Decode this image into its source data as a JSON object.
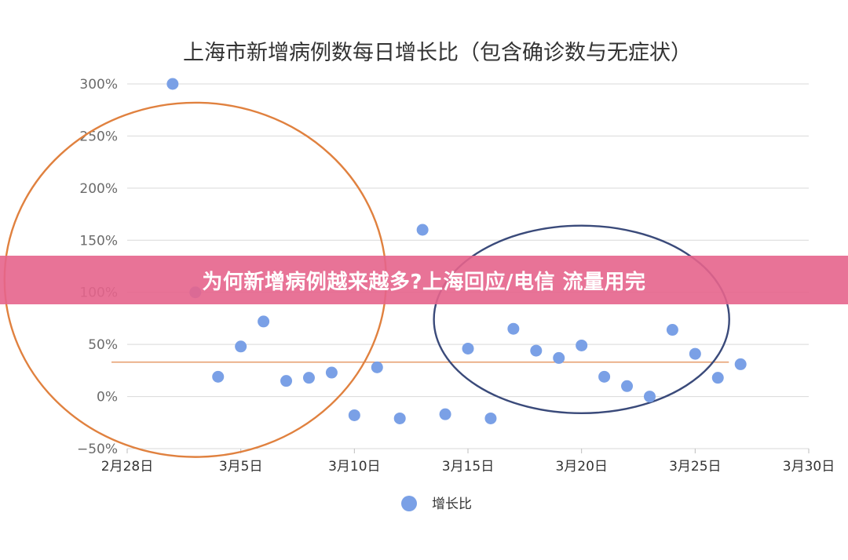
{
  "chart_data": {
    "type": "scatter",
    "title": "上海市新增病例数每日增长比（包含确诊数与无症状）",
    "xlabel": "",
    "ylabel": "",
    "x_ticks": [
      "2月28日",
      "3月5日",
      "3月10日",
      "3月15日",
      "3月20日",
      "3月25日",
      "3月30日"
    ],
    "y_ticks": [
      "300%",
      "250%",
      "200%",
      "150%",
      "100%",
      "50%",
      "0%",
      "−50%"
    ],
    "xlim": [
      "2022-02-28",
      "2022-03-30"
    ],
    "ylim": [
      -50,
      300
    ],
    "grid": "horizontal",
    "legend_position": "bottom",
    "series": [
      {
        "name": "增长比",
        "color": "#7aa0e6",
        "points": [
          {
            "x": "2022-03-02",
            "y": 300
          },
          {
            "x": "2022-03-03",
            "y": 100
          },
          {
            "x": "2022-03-04",
            "y": 19
          },
          {
            "x": "2022-03-05",
            "y": 48
          },
          {
            "x": "2022-03-06",
            "y": 72
          },
          {
            "x": "2022-03-07",
            "y": 15
          },
          {
            "x": "2022-03-08",
            "y": 18
          },
          {
            "x": "2022-03-09",
            "y": 23
          },
          {
            "x": "2022-03-10",
            "y": -18
          },
          {
            "x": "2022-03-11",
            "y": 28
          },
          {
            "x": "2022-03-12",
            "y": -21
          },
          {
            "x": "2022-03-13",
            "y": 160
          },
          {
            "x": "2022-03-14",
            "y": -17
          },
          {
            "x": "2022-03-15",
            "y": 46
          },
          {
            "x": "2022-03-16",
            "y": -21
          },
          {
            "x": "2022-03-17",
            "y": 65
          },
          {
            "x": "2022-03-18",
            "y": 44
          },
          {
            "x": "2022-03-19",
            "y": 37
          },
          {
            "x": "2022-03-20",
            "y": 49
          },
          {
            "x": "2022-03-21",
            "y": 19
          },
          {
            "x": "2022-03-22",
            "y": 10
          },
          {
            "x": "2022-03-23",
            "y": 0
          },
          {
            "x": "2022-03-24",
            "y": 64
          },
          {
            "x": "2022-03-25",
            "y": 41
          },
          {
            "x": "2022-03-26",
            "y": 18
          },
          {
            "x": "2022-03-27",
            "y": 31
          }
        ]
      }
    ],
    "reference_line": {
      "y": 33,
      "from": "2022-02-28",
      "to": "2022-03-26",
      "color": "#e08a4f"
    },
    "annotation_circles": [
      {
        "color": "#e0813f",
        "center_x": "2022-03-03",
        "center_y": 112,
        "radius_x_days": 8.4,
        "radius_y": 170
      },
      {
        "color": "#3a4a7a",
        "center_x": "2022-03-20",
        "center_y": 74,
        "radius_x_days": 6.5,
        "radius_y": 90
      }
    ],
    "legend": [
      "增长比"
    ]
  },
  "banner": {
    "text": "为何新增病例越来越多?上海回应/电信 流量用完",
    "color": "#e6648c"
  }
}
